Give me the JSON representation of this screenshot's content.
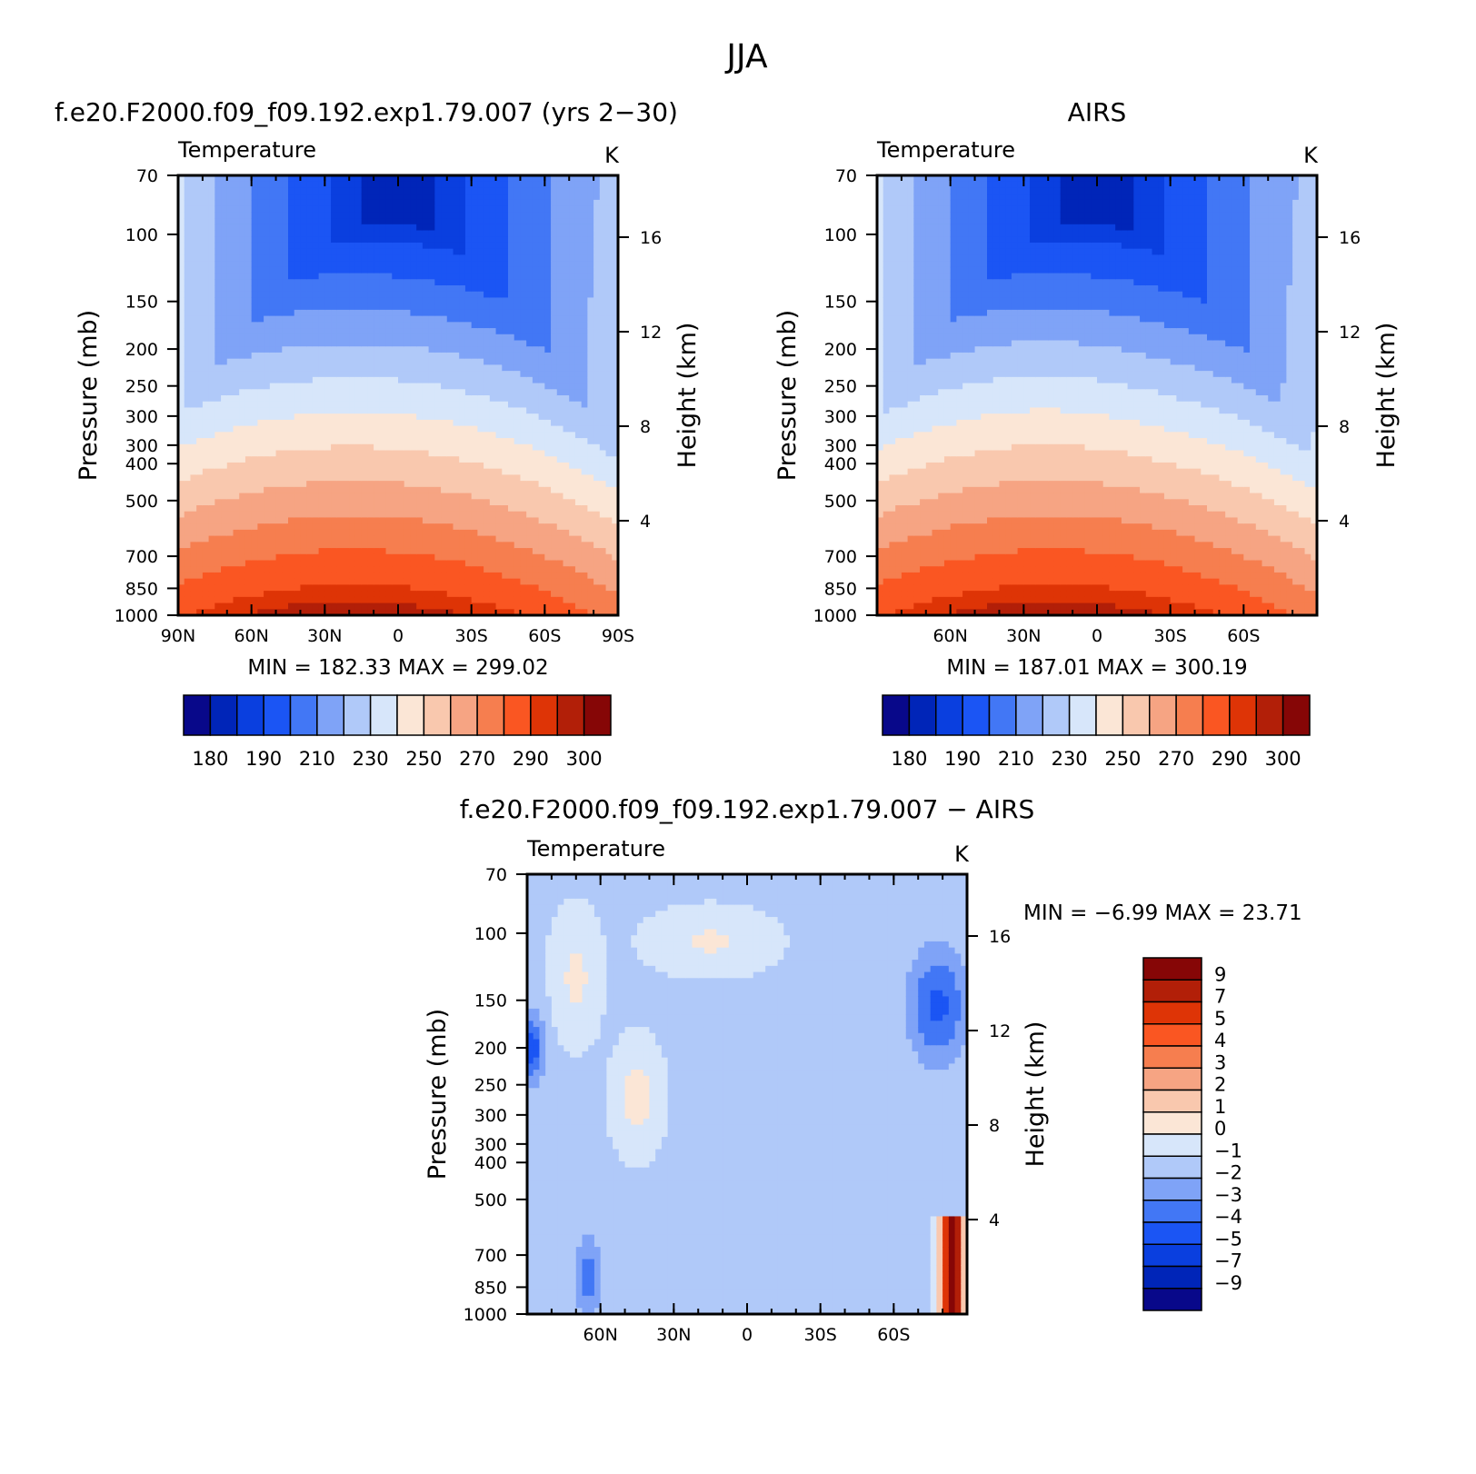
{
  "figure": {
    "title": "JJA"
  },
  "colors": {
    "temperature": [
      "#08088a",
      "#0025b8",
      "#0a3fdf",
      "#1b55f4",
      "#4277f5",
      "#7fa3f7",
      "#b0c9f9",
      "#d7e6fa",
      "#fbe6d6",
      "#f9c8ae",
      "#f6a483",
      "#f67e4f",
      "#fa5622",
      "#de3406",
      "#b21f08",
      "#860606"
    ],
    "difference": [
      "#08088a",
      "#0025b8",
      "#0a3fdf",
      "#1b55f4",
      "#4277f5",
      "#7fa3f7",
      "#b0c9f9",
      "#d7e6fa",
      "#fbe6d6",
      "#f9c8ae",
      "#f6a483",
      "#f67e4f",
      "#fa5622",
      "#de3406",
      "#b21f08",
      "#860606"
    ]
  },
  "chart_data": [
    {
      "type": "heatmap",
      "panel": "model",
      "title": "f.e20.F2000.f09_f09.192.exp1.79.007 (yrs 2−30)",
      "subtitle": "Temperature",
      "units": "K",
      "ylabel": "Pressure (mb)",
      "ylabel_right": "Height (km)",
      "x_ticks": [
        "90N",
        "60N",
        "30N",
        "0",
        "30S",
        "60S",
        "90S"
      ],
      "x_tick_values": [
        90,
        60,
        30,
        0,
        -30,
        -60,
        -90
      ],
      "xlim": [
        90,
        -90
      ],
      "y_ticks": [
        "70",
        "100",
        "150",
        "200",
        "250",
        "300",
        "300",
        "400",
        "500",
        "700",
        "850",
        "1000"
      ],
      "y_tick_values": [
        70,
        100,
        150,
        200,
        250,
        300,
        300,
        400,
        500,
        700,
        850,
        1000
      ],
      "ylim": [
        1000,
        70
      ],
      "y_scale": "log",
      "height_ticks": [
        "16",
        "12",
        "8",
        "4"
      ],
      "height_tick_values": [
        16,
        12,
        8,
        4
      ],
      "stats": "MIN = 182.33 MAX = 299.02",
      "min": 182.33,
      "max": 299.02,
      "colorbar_orientation": "horizontal",
      "colorbar_labels": [
        "180",
        "190",
        "210",
        "230",
        "250",
        "270",
        "290",
        "300"
      ],
      "levels": [
        180,
        185,
        190,
        200,
        210,
        220,
        230,
        240,
        250,
        260,
        270,
        280,
        290,
        295,
        300
      ]
    },
    {
      "type": "heatmap",
      "panel": "observations",
      "title": "AIRS",
      "subtitle": "Temperature",
      "units": "K",
      "ylabel": "Pressure (mb)",
      "ylabel_right": "Height (km)",
      "x_ticks": [
        "60N",
        "30N",
        "0",
        "30S",
        "60S"
      ],
      "x_tick_values": [
        60,
        30,
        0,
        -30,
        -60
      ],
      "xlim": [
        90,
        -90
      ],
      "y_ticks": [
        "70",
        "100",
        "150",
        "200",
        "250",
        "300",
        "300",
        "400",
        "500",
        "700",
        "850",
        "1000"
      ],
      "y_tick_values": [
        70,
        100,
        150,
        200,
        250,
        300,
        300,
        400,
        500,
        700,
        850,
        1000
      ],
      "ylim": [
        1000,
        70
      ],
      "y_scale": "log",
      "height_ticks": [
        "16",
        "12",
        "8",
        "4"
      ],
      "height_tick_values": [
        16,
        12,
        8,
        4
      ],
      "stats": "MIN = 187.01 MAX = 300.19",
      "min": 187.01,
      "max": 300.19,
      "colorbar_orientation": "horizontal",
      "colorbar_labels": [
        "180",
        "190",
        "210",
        "230",
        "250",
        "270",
        "290",
        "300"
      ],
      "levels": [
        180,
        185,
        190,
        200,
        210,
        220,
        230,
        240,
        250,
        260,
        270,
        280,
        290,
        295,
        300
      ]
    },
    {
      "type": "heatmap",
      "panel": "difference",
      "title": "f.e20.F2000.f09_f09.192.exp1.79.007 − AIRS",
      "subtitle": "Temperature",
      "units": "K",
      "ylabel": "Pressure (mb)",
      "ylabel_right": "Height (km)",
      "x_ticks": [
        "60N",
        "30N",
        "0",
        "30S",
        "60S"
      ],
      "x_tick_values": [
        60,
        30,
        0,
        -30,
        -60
      ],
      "xlim": [
        90,
        -90
      ],
      "y_ticks": [
        "70",
        "100",
        "150",
        "200",
        "250",
        "300",
        "300",
        "400",
        "500",
        "700",
        "850",
        "1000"
      ],
      "y_tick_values": [
        70,
        100,
        150,
        200,
        250,
        300,
        300,
        400,
        500,
        700,
        850,
        1000
      ],
      "ylim": [
        1000,
        70
      ],
      "y_scale": "log",
      "height_ticks": [
        "16",
        "12",
        "8",
        "4"
      ],
      "height_tick_values": [
        16,
        12,
        8,
        4
      ],
      "stats": "MIN = −6.99 MAX = 23.71",
      "min": -6.99,
      "max": 23.71,
      "colorbar_orientation": "vertical",
      "colorbar_labels": [
        "9",
        "7",
        "5",
        "4",
        "3",
        "2",
        "1",
        "0",
        "−1",
        "−2",
        "−3",
        "−4",
        "−5",
        "−7",
        "−9"
      ],
      "levels": [
        -9,
        -7,
        -5,
        -4,
        -3,
        -2,
        -1,
        0,
        1,
        2,
        3,
        4,
        5,
        7,
        9
      ]
    }
  ]
}
